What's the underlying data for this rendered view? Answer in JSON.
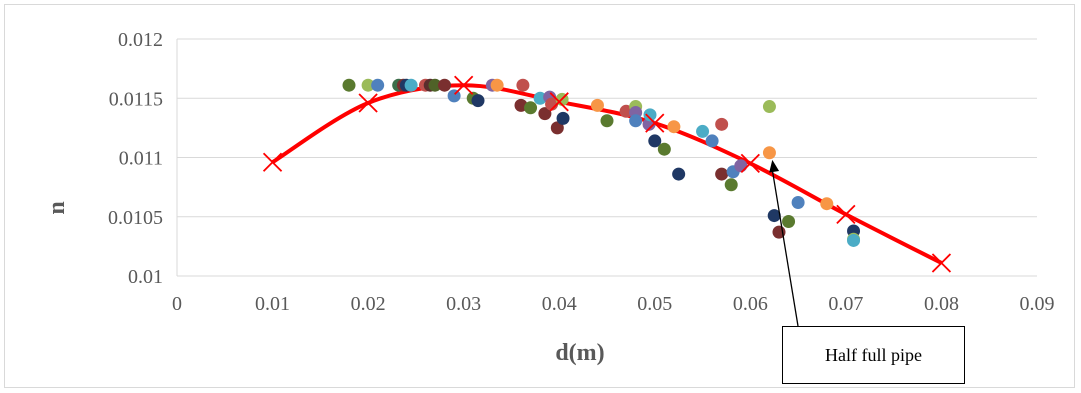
{
  "chart_data": {
    "type": "scatter",
    "xlabel": "d(m)",
    "ylabel": "n",
    "xlim": [
      0,
      0.09
    ],
    "ylim": [
      0.01,
      0.012
    ],
    "x_ticks": [
      "0",
      "0.01",
      "0.02",
      "0.03",
      "0.04",
      "0.05",
      "0.06",
      "0.07",
      "0.08",
      "0.09"
    ],
    "y_ticks": [
      "0.01",
      "0.0105",
      "0.011",
      "0.0115",
      "0.012"
    ],
    "grid": "horizontal",
    "curve": {
      "color": "#ff0000",
      "marker": "x",
      "points": [
        {
          "x": 0.01,
          "y": 0.01096
        },
        {
          "x": 0.02,
          "y": 0.01146
        },
        {
          "x": 0.03,
          "y": 0.01161
        },
        {
          "x": 0.04,
          "y": 0.01147
        },
        {
          "x": 0.05,
          "y": 0.01129
        },
        {
          "x": 0.06,
          "y": 0.01095
        },
        {
          "x": 0.07,
          "y": 0.01052
        },
        {
          "x": 0.08,
          "y": 0.01011
        }
      ]
    },
    "scatter_points": [
      {
        "x": 0.018,
        "y": 0.01161,
        "color": "#5a7a2f"
      },
      {
        "x": 0.02,
        "y": 0.01161,
        "color": "#9bbb59"
      },
      {
        "x": 0.021,
        "y": 0.01161,
        "color": "#4f81bd"
      },
      {
        "x": 0.0232,
        "y": 0.01161,
        "color": "#3c6e4a"
      },
      {
        "x": 0.0237,
        "y": 0.01161,
        "color": "#7a2f2f"
      },
      {
        "x": 0.024,
        "y": 0.01161,
        "color": "#1f3864"
      },
      {
        "x": 0.0245,
        "y": 0.01161,
        "color": "#4bacc6"
      },
      {
        "x": 0.026,
        "y": 0.01161,
        "color": "#c0504d"
      },
      {
        "x": 0.0265,
        "y": 0.01161,
        "color": "#5a2d2d"
      },
      {
        "x": 0.027,
        "y": 0.01161,
        "color": "#4f6228"
      },
      {
        "x": 0.028,
        "y": 0.01161,
        "color": "#7a2f2f"
      },
      {
        "x": 0.029,
        "y": 0.01152,
        "color": "#4f81bd"
      },
      {
        "x": 0.031,
        "y": 0.0115,
        "color": "#5a7a2f"
      },
      {
        "x": 0.0315,
        "y": 0.01148,
        "color": "#1f3864"
      },
      {
        "x": 0.033,
        "y": 0.01161,
        "color": "#8064a2"
      },
      {
        "x": 0.0335,
        "y": 0.01161,
        "color": "#f79646"
      },
      {
        "x": 0.036,
        "y": 0.01144,
        "color": "#7a2f2f"
      },
      {
        "x": 0.0362,
        "y": 0.01161,
        "color": "#c0504d"
      },
      {
        "x": 0.037,
        "y": 0.01142,
        "color": "#5a7a2f"
      },
      {
        "x": 0.038,
        "y": 0.0115,
        "color": "#4bacc6"
      },
      {
        "x": 0.0385,
        "y": 0.01137,
        "color": "#7a2f2f"
      },
      {
        "x": 0.039,
        "y": 0.01151,
        "color": "#8064a2"
      },
      {
        "x": 0.0392,
        "y": 0.01145,
        "color": "#c0504d"
      },
      {
        "x": 0.0398,
        "y": 0.01125,
        "color": "#7a2f2f"
      },
      {
        "x": 0.0403,
        "y": 0.01149,
        "color": "#9bbb59"
      },
      {
        "x": 0.0404,
        "y": 0.01133,
        "color": "#1f3864"
      },
      {
        "x": 0.044,
        "y": 0.01144,
        "color": "#f79646"
      },
      {
        "x": 0.045,
        "y": 0.01131,
        "color": "#5a7a2f"
      },
      {
        "x": 0.047,
        "y": 0.01139,
        "color": "#c0504d"
      },
      {
        "x": 0.048,
        "y": 0.01143,
        "color": "#9bbb59"
      },
      {
        "x": 0.048,
        "y": 0.01138,
        "color": "#8064a2"
      },
      {
        "x": 0.048,
        "y": 0.01131,
        "color": "#4f81bd"
      },
      {
        "x": 0.0494,
        "y": 0.01128,
        "color": "#8064a2"
      },
      {
        "x": 0.0495,
        "y": 0.01136,
        "color": "#4bacc6"
      },
      {
        "x": 0.05,
        "y": 0.01114,
        "color": "#1f3864"
      },
      {
        "x": 0.051,
        "y": 0.01107,
        "color": "#5a7a2f"
      },
      {
        "x": 0.052,
        "y": 0.01126,
        "color": "#f79646"
      },
      {
        "x": 0.0525,
        "y": 0.01086,
        "color": "#1f3864"
      },
      {
        "x": 0.055,
        "y": 0.01122,
        "color": "#4bacc6"
      },
      {
        "x": 0.056,
        "y": 0.01114,
        "color": "#4f81bd"
      },
      {
        "x": 0.057,
        "y": 0.01086,
        "color": "#7a2f2f"
      },
      {
        "x": 0.057,
        "y": 0.01128,
        "color": "#c0504d"
      },
      {
        "x": 0.058,
        "y": 0.01077,
        "color": "#5a7a2f"
      },
      {
        "x": 0.0582,
        "y": 0.01088,
        "color": "#4f81bd"
      },
      {
        "x": 0.059,
        "y": 0.01093,
        "color": "#8064a2"
      },
      {
        "x": 0.062,
        "y": 0.01143,
        "color": "#9bbb59"
      },
      {
        "x": 0.062,
        "y": 0.01104,
        "color": "#f79646"
      },
      {
        "x": 0.0625,
        "y": 0.01051,
        "color": "#1f3864"
      },
      {
        "x": 0.063,
        "y": 0.01037,
        "color": "#7a2f2f"
      },
      {
        "x": 0.064,
        "y": 0.01046,
        "color": "#5a7a2f"
      },
      {
        "x": 0.065,
        "y": 0.01062,
        "color": "#4f81bd"
      },
      {
        "x": 0.068,
        "y": 0.01061,
        "color": "#f79646"
      },
      {
        "x": 0.0708,
        "y": 0.01038,
        "color": "#1f3864"
      },
      {
        "x": 0.0708,
        "y": 0.01031,
        "color": "#9bbb59"
      },
      {
        "x": 0.0708,
        "y": 0.0103,
        "color": "#4bacc6"
      }
    ],
    "annotation": {
      "text": "Half full pipe",
      "target": {
        "x": 0.0623,
        "y": 0.01098
      }
    }
  }
}
